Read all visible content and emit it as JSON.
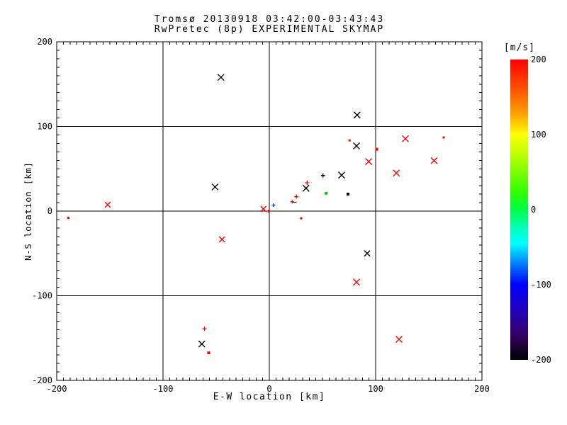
{
  "title": {
    "line1": "Tromsø 20130918 03:42:00-03:43:43",
    "line2": "RwPretec (8p) EXPERIMENTAL SKYMAP"
  },
  "axes": {
    "xlabel": "E-W location [km]",
    "ylabel": "N-S location [km]",
    "xlim": [
      -200,
      200
    ],
    "ylim": [
      -200,
      200
    ],
    "xticks": [
      -200,
      -100,
      0,
      100,
      200
    ],
    "yticks": [
      -200,
      -100,
      0,
      100,
      200
    ],
    "grid_x": [
      -100,
      0,
      100
    ],
    "grid_y": [
      -100,
      0,
      100
    ]
  },
  "colorbar": {
    "label": "[m/s]",
    "min": -200,
    "max": 200,
    "ticks": [
      200,
      100,
      0,
      -100,
      -200
    ],
    "stops": [
      {
        "value": 200,
        "color": "#ff0000"
      },
      {
        "value": 160,
        "color": "#ff5500"
      },
      {
        "value": 130,
        "color": "#ff9900"
      },
      {
        "value": 100,
        "color": "#ffff00"
      },
      {
        "value": 60,
        "color": "#99ff00"
      },
      {
        "value": 25,
        "color": "#33ff00"
      },
      {
        "value": 0,
        "color": "#00ff44"
      },
      {
        "value": -25,
        "color": "#00ffbb"
      },
      {
        "value": -45,
        "color": "#00ffff"
      },
      {
        "value": -70,
        "color": "#0088ff"
      },
      {
        "value": -100,
        "color": "#0000ff"
      },
      {
        "value": -135,
        "color": "#2200bb"
      },
      {
        "value": -165,
        "color": "#38006a"
      },
      {
        "value": -200,
        "color": "#000000"
      }
    ]
  },
  "chart_data": {
    "type": "scatter",
    "title": "Tromsø 20130918 03:42:00-03:43:43 / RwPretec (8p) EXPERIMENTAL SKYMAP",
    "xlabel": "E-W location [km]",
    "ylabel": "N-S location [km]",
    "xlim": [
      -200,
      200
    ],
    "ylim": [
      -200,
      200
    ],
    "legend": "colorbar [m/s] from -200 (black) to +200 (red)",
    "points": [
      {
        "x": -45.5,
        "y": 158,
        "marker": "x",
        "color": "#000000",
        "size": 9
      },
      {
        "x": 82.5,
        "y": 113.5,
        "marker": "x",
        "color": "#000000",
        "size": 9
      },
      {
        "x": 128,
        "y": 85.5,
        "marker": "x",
        "color": "#ff0000",
        "size": 9
      },
      {
        "x": 164,
        "y": 87,
        "marker": "dot",
        "color": "#ff0000",
        "size": 3
      },
      {
        "x": 75.5,
        "y": 83.5,
        "marker": "dot",
        "color": "#ff0000",
        "size": 3
      },
      {
        "x": 82,
        "y": 77,
        "marker": "x",
        "color": "#000000",
        "size": 9
      },
      {
        "x": 101,
        "y": 73,
        "marker": "dot",
        "color": "#ff0000",
        "size": 4
      },
      {
        "x": 155,
        "y": 59.5,
        "marker": "x",
        "color": "#ff0000",
        "size": 9
      },
      {
        "x": 93.5,
        "y": 58.5,
        "marker": "x",
        "color": "#ff0000",
        "size": 9
      },
      {
        "x": 119.5,
        "y": 45,
        "marker": "x",
        "color": "#ff0000",
        "size": 9
      },
      {
        "x": 68,
        "y": 42.5,
        "marker": "x",
        "color": "#000000",
        "size": 9
      },
      {
        "x": 50.5,
        "y": 42,
        "marker": "plus",
        "color": "#000000",
        "size": 6
      },
      {
        "x": -51,
        "y": 28.5,
        "marker": "x",
        "color": "#000000",
        "size": 9
      },
      {
        "x": 35.5,
        "y": 33.5,
        "marker": "plus",
        "color": "#ff0000",
        "size": 6
      },
      {
        "x": 34.5,
        "y": 27,
        "marker": "x",
        "color": "#000000",
        "size": 9
      },
      {
        "x": 53.5,
        "y": 21,
        "marker": "dot",
        "color": "#00cc00",
        "size": 4
      },
      {
        "x": 74,
        "y": 20,
        "marker": "dot",
        "color": "#000000",
        "size": 4
      },
      {
        "x": 25.5,
        "y": 17,
        "marker": "plus",
        "color": "#ff0000",
        "size": 6
      },
      {
        "x": 21.5,
        "y": 11,
        "marker": "plus",
        "color": "#ff0000",
        "size": 5
      },
      {
        "x": 24,
        "y": 10.5,
        "marker": "dash",
        "color": "#000000",
        "size": 5
      },
      {
        "x": 4,
        "y": 7,
        "marker": "plus",
        "color": "#0033ff",
        "size": 5
      },
      {
        "x": -5.5,
        "y": 2.5,
        "marker": "x",
        "color": "#ff0000",
        "size": 8
      },
      {
        "x": -1,
        "y": 0,
        "marker": "plus",
        "color": "#ff0000",
        "size": 4
      },
      {
        "x": 30,
        "y": -8.5,
        "marker": "dot",
        "color": "#ff0000",
        "size": 3
      },
      {
        "x": -152,
        "y": 7.5,
        "marker": "x",
        "color": "#ff0000",
        "size": 8
      },
      {
        "x": -189,
        "y": -8,
        "marker": "dot",
        "color": "#ff0000",
        "size": 3
      },
      {
        "x": -44.5,
        "y": -33.5,
        "marker": "x",
        "color": "#ff0000",
        "size": 8
      },
      {
        "x": 92,
        "y": -50,
        "marker": "x",
        "color": "#000000",
        "size": 8
      },
      {
        "x": 82,
        "y": -84,
        "marker": "x",
        "color": "#ff0000",
        "size": 9
      },
      {
        "x": -61,
        "y": -139,
        "marker": "plus",
        "color": "#ff0000",
        "size": 6
      },
      {
        "x": -63.5,
        "y": -157,
        "marker": "x",
        "color": "#000000",
        "size": 9
      },
      {
        "x": -57,
        "y": -167.5,
        "marker": "dot",
        "color": "#ff0000",
        "size": 4
      },
      {
        "x": 122,
        "y": -151.5,
        "marker": "x",
        "color": "#ff0000",
        "size": 9
      }
    ]
  }
}
